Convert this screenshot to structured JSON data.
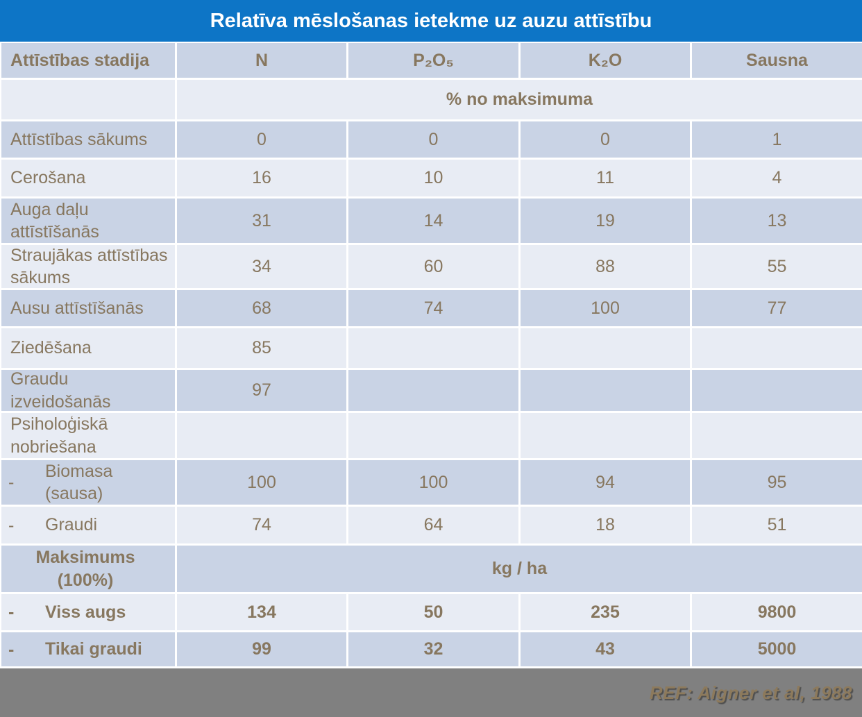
{
  "title": "Relatīva mēslošanas ietekme uz auzu attīstību",
  "header": {
    "stage": "Attīstības stadija",
    "n": "N",
    "p2o5": "P₂O₅",
    "k2o": "K₂O",
    "sausna": "Sausna"
  },
  "section_percent": "% no maksimuma",
  "section_kg": "kg / ha",
  "maks_label": "Maksimums (100%)",
  "rows": [
    {
      "label": "Attīstības sākums",
      "v1": "0",
      "v2": "0",
      "v3": "0",
      "v4": "1"
    },
    {
      "label": "Cerošana",
      "v1": "16",
      "v2": "10",
      "v3": "11",
      "v4": "4"
    },
    {
      "label": "Auga daļu attīstīšanās",
      "v1": "31",
      "v2": "14",
      "v3": "19",
      "v4": "13"
    },
    {
      "label": "Straujākas attīstības sākums",
      "v1": "34",
      "v2": "60",
      "v3": "88",
      "v4": "55"
    },
    {
      "label": "Ausu attīstīšanās",
      "v1": "68",
      "v2": "74",
      "v3": "100",
      "v4": "77"
    },
    {
      "label": "Ziedēšana",
      "v1": "85",
      "v2": "",
      "v3": "",
      "v4": ""
    },
    {
      "label": "Graudu izveidošanās",
      "v1": "97",
      "v2": "",
      "v3": "",
      "v4": ""
    },
    {
      "label": "Psiholoģiskā nobriešana",
      "v1": "",
      "v2": "",
      "v3": "",
      "v4": ""
    },
    {
      "dash": "-",
      "label": "Biomasa (sausa)",
      "v1": "100",
      "v2": "100",
      "v3": "94",
      "v4": "95"
    },
    {
      "dash": "-",
      "label": "Graudi",
      "v1": "74",
      "v2": "64",
      "v3": "18",
      "v4": "51"
    },
    {
      "dash": "-",
      "label": "Viss augs",
      "v1": "134",
      "v2": "50",
      "v3": "235",
      "v4": "9800"
    },
    {
      "dash": "-",
      "label": "Tikai graudi",
      "v1": "99",
      "v2": "32",
      "v3": "43",
      "v4": "5000"
    }
  ],
  "footer": {
    "ref": "REF: Aigner et al, 1988"
  },
  "colors": {
    "title_bg": "#0d75c6",
    "row_dark": "#c9d3e5",
    "row_light": "#e8ecf4",
    "text": "#87775f",
    "footer_bg": "#808080",
    "footer_text": "#8d7a5c"
  },
  "chart_data": {
    "type": "table",
    "title": "Relatīva mēslošanas ietekme uz auzu attīstību",
    "columns": [
      "Attīstības stadija",
      "N",
      "P₂O₅",
      "K₂O",
      "Sausna"
    ],
    "sections": [
      {
        "unit": "% no maksimuma",
        "rows": [
          [
            "Attīstības sākums",
            0,
            0,
            0,
            1
          ],
          [
            "Cerošana",
            16,
            10,
            11,
            4
          ],
          [
            "Auga daļu attīstīšanās",
            31,
            14,
            19,
            13
          ],
          [
            "Straujākas attīstības sākums",
            34,
            60,
            88,
            55
          ],
          [
            "Ausu attīstīšanās",
            68,
            74,
            100,
            77
          ],
          [
            "Ziedēšana",
            85,
            null,
            null,
            null
          ],
          [
            "Graudu izveidošanās",
            97,
            null,
            null,
            null
          ],
          [
            "Psiholoģiskā nobriešana",
            null,
            null,
            null,
            null
          ],
          [
            "Biomasa (sausa)",
            100,
            100,
            94,
            95
          ],
          [
            "Graudi",
            74,
            64,
            18,
            51
          ]
        ]
      },
      {
        "unit": "kg / ha",
        "group_label": "Maksimums (100%)",
        "rows": [
          [
            "Viss augs",
            134,
            50,
            235,
            9800
          ],
          [
            "Tikai graudi",
            99,
            32,
            43,
            5000
          ]
        ]
      }
    ],
    "source": "REF: Aigner et al, 1988"
  }
}
